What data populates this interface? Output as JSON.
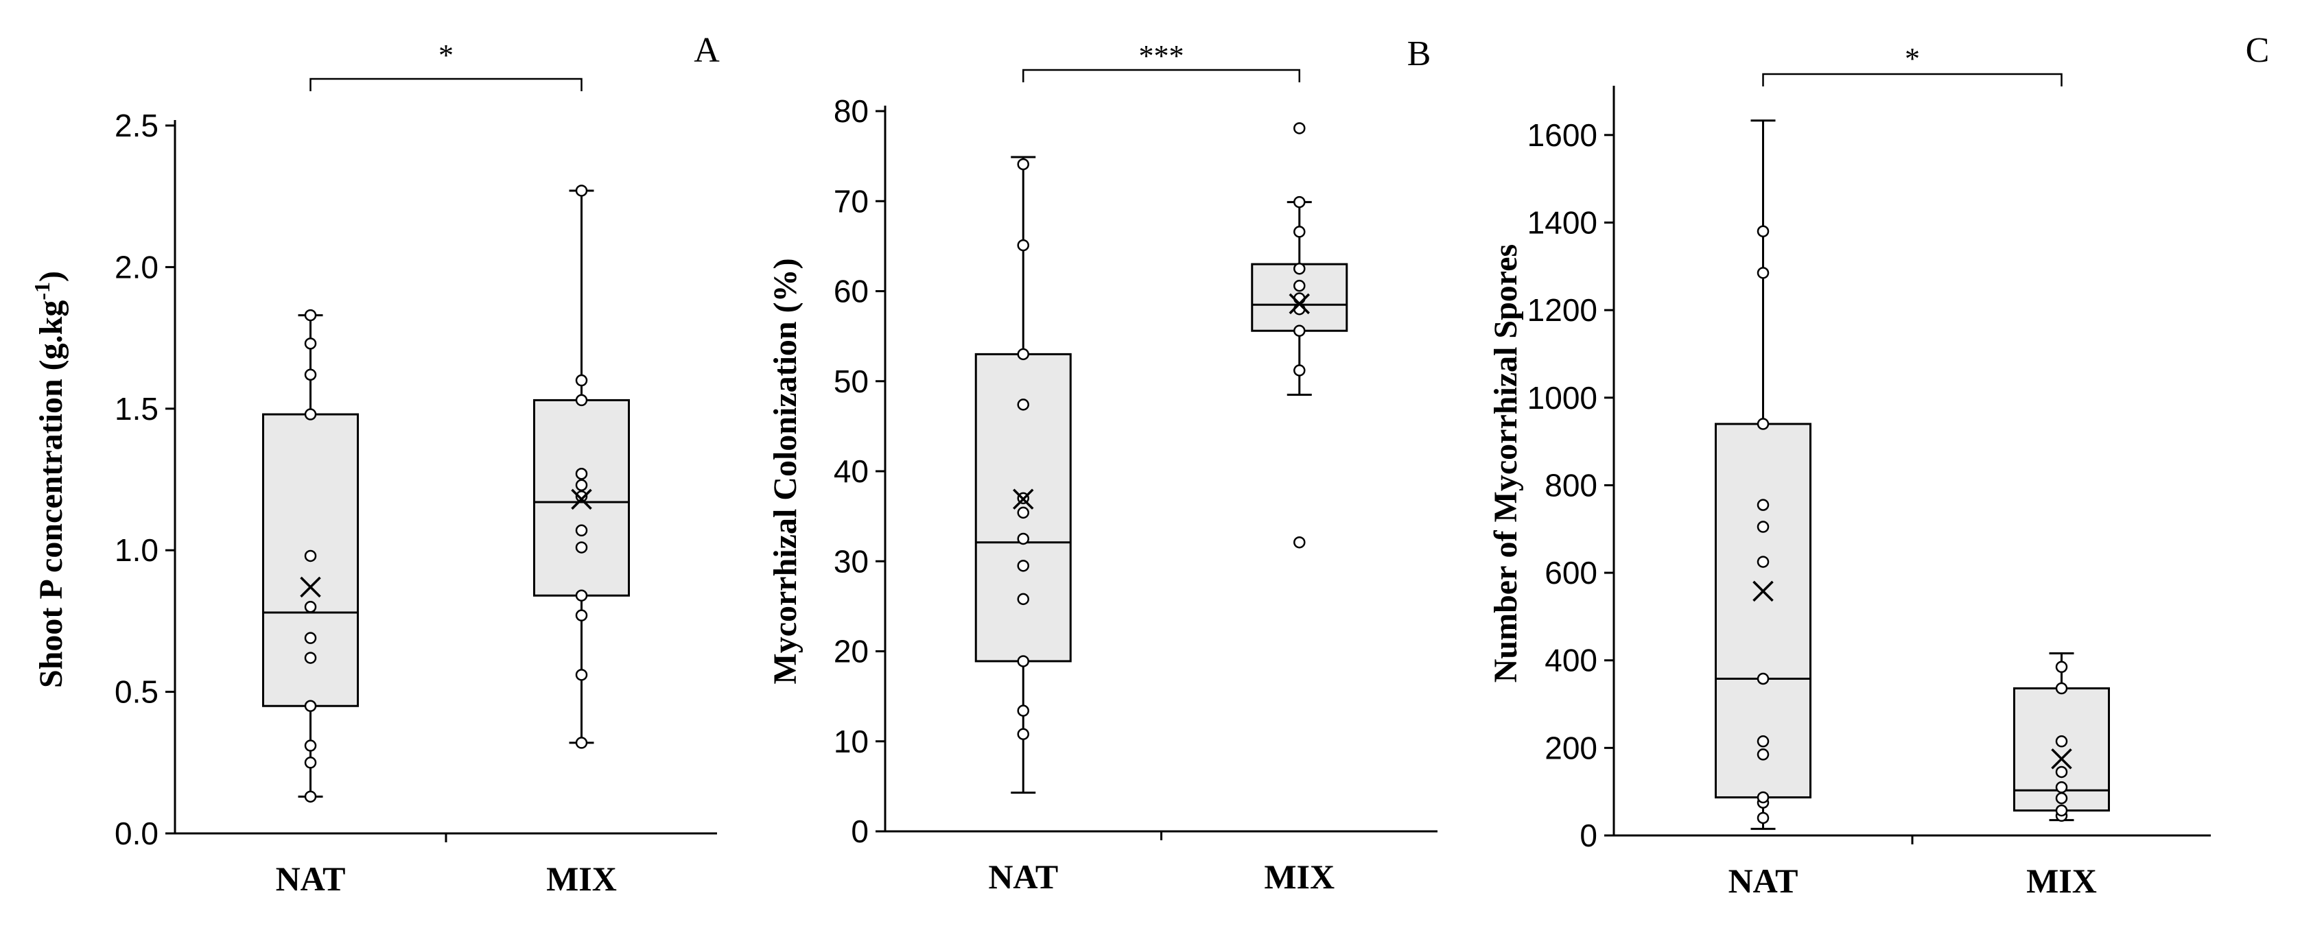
{
  "chart_data": [
    {
      "type": "box",
      "panel_label": "A",
      "ylabel": "Shoot P concentration (g.kg",
      "ylabel_superscript": "-1",
      "ylabel_suffix": ")",
      "ylim": [
        0,
        2.5
      ],
      "yticks": [
        0.0,
        0.5,
        1.0,
        1.5,
        2.0,
        2.5
      ],
      "yticks_labels": [
        "0.0",
        "0.5",
        "1.0",
        "1.5",
        "2.0",
        "2.5"
      ],
      "categories": [
        "NAT",
        "MIX"
      ],
      "significance": "*",
      "boxes": [
        {
          "name": "NAT",
          "min": 0.13,
          "q1": 0.45,
          "median": 0.78,
          "q3": 1.48,
          "max": 1.83,
          "mean": 0.87,
          "points": [
            0.13,
            0.25,
            0.31,
            0.45,
            0.62,
            0.69,
            0.8,
            0.98,
            1.48,
            1.62,
            1.73,
            1.83
          ]
        },
        {
          "name": "MIX",
          "min": 0.32,
          "q1": 0.84,
          "median": 1.17,
          "q3": 1.53,
          "max": 2.27,
          "mean": 1.18,
          "points": [
            0.32,
            0.56,
            0.77,
            0.84,
            1.01,
            1.07,
            1.19,
            1.23,
            1.27,
            1.53,
            1.6,
            2.27
          ]
        }
      ]
    },
    {
      "type": "box",
      "panel_label": "B",
      "ylabel": "Mycorrhizal Colonization (%)",
      "ylabel_superscript": "",
      "ylabel_suffix": "",
      "ylim": [
        0,
        80
      ],
      "yticks": [
        0,
        10,
        20,
        30,
        40,
        50,
        60,
        70,
        80
      ],
      "yticks_labels": [
        "0",
        "10",
        "20",
        "30",
        "40",
        "50",
        "60",
        "70",
        "80"
      ],
      "categories": [
        "NAT",
        "MIX"
      ],
      "significance": "***",
      "boxes": [
        {
          "name": "NAT",
          "min": 4.3,
          "q1": 18.9,
          "median": 32.1,
          "q3": 53.0,
          "max": 74.9,
          "mean": 36.9,
          "points": [
            10.8,
            13.4,
            18.9,
            25.8,
            29.5,
            32.5,
            35.4,
            37.0,
            47.4,
            53.0,
            65.1,
            74.1
          ]
        },
        {
          "name": "MIX",
          "min": 48.5,
          "q1": 55.6,
          "median": 58.5,
          "q3": 63.0,
          "max": 69.9,
          "mean": 58.6,
          "points": [
            32.1,
            51.2,
            55.6,
            58.0,
            59.2,
            60.6,
            62.5,
            66.6,
            69.9,
            78.1
          ]
        }
      ]
    },
    {
      "type": "box",
      "panel_label": "C",
      "ylabel": "Number of Mycorrhizal Spores",
      "ylabel_superscript": "",
      "ylabel_suffix": "",
      "ylim": [
        0,
        1700
      ],
      "yticks": [
        0,
        200,
        400,
        600,
        800,
        1000,
        1200,
        1400,
        1600
      ],
      "yticks_labels": [
        "0",
        "200",
        "400",
        "600",
        "800",
        "1000",
        "1200",
        "1400",
        "1600"
      ],
      "categories": [
        "NAT",
        "MIX"
      ],
      "significance": "*",
      "boxes": [
        {
          "name": "NAT",
          "min": 15,
          "q1": 87,
          "median": 358,
          "q3": 940,
          "max": 1633,
          "mean": 558,
          "points": [
            40,
            75,
            87,
            185,
            215,
            358,
            625,
            705,
            755,
            940,
            1285,
            1380
          ]
        },
        {
          "name": "MIX",
          "min": 35,
          "q1": 57,
          "median": 103,
          "q3": 336,
          "max": 416,
          "mean": 175,
          "points": [
            45,
            57,
            85,
            110,
            145,
            215,
            336,
            385
          ]
        }
      ]
    }
  ]
}
